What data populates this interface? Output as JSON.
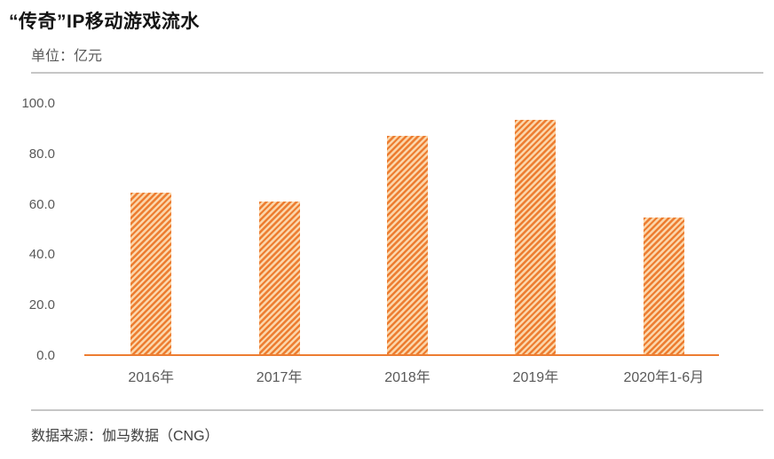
{
  "page": {
    "title": "“传奇”IP移动游戏流水",
    "unit_label": "单位：亿元",
    "source": "数据来源：伽马数据（CNG）"
  },
  "chart_data": {
    "type": "bar",
    "title": "“传奇”IP移动游戏流水",
    "ylabel": "亿元",
    "xlabel": "",
    "categories": [
      "2016年",
      "2017年",
      "2018年",
      "2019年",
      "2020年1-6月"
    ],
    "values": [
      64.9,
      61.2,
      87.4,
      93.6,
      54.9
    ],
    "ylim": [
      0,
      100
    ],
    "ytick_step": 20,
    "ytick_labels": [
      "0.0",
      "20.0",
      "40.0",
      "60.0",
      "80.0",
      "100.0"
    ],
    "grid": false,
    "legend": "none",
    "bar_color": "#ED7D31",
    "bar_hatch_light": "#FBD6AA",
    "bar_hatch_style": "diagonal-forward-stripes",
    "axis_line_color": "#ED7D31",
    "source": "数据来源：伽马数据（CNG）"
  }
}
